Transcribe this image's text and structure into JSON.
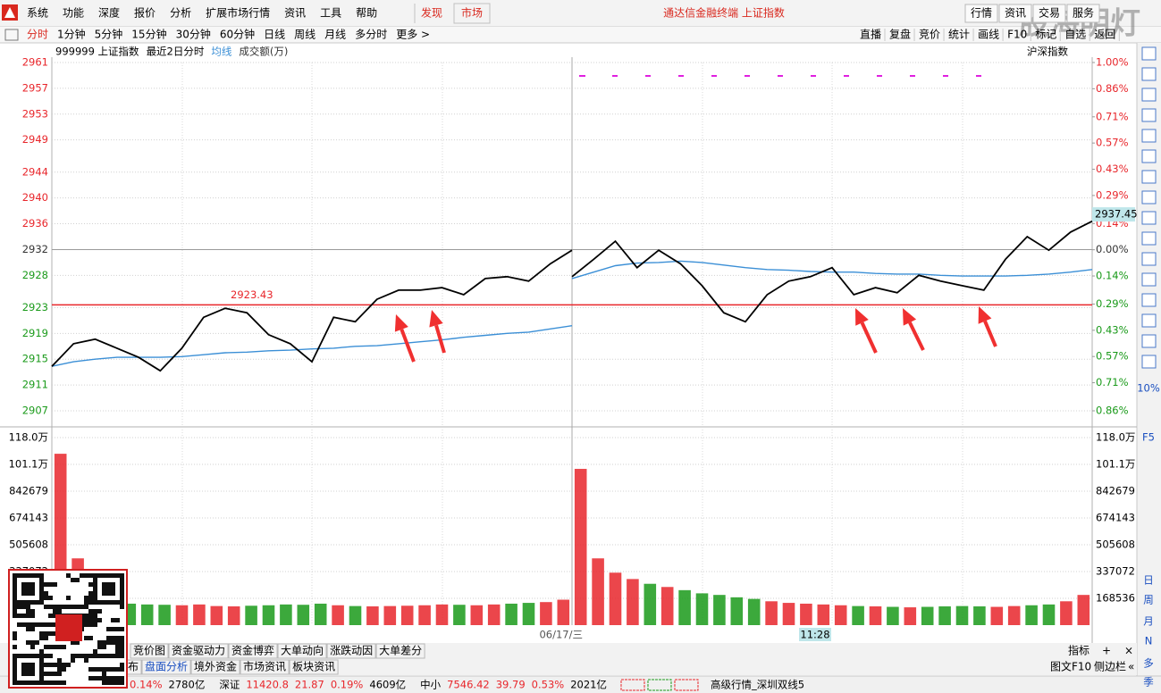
{
  "menu": {
    "items": [
      "系统",
      "功能",
      "深度",
      "报价",
      "分析",
      "扩展市场行情",
      "资讯",
      "工具",
      "帮助"
    ],
    "discover": "发现",
    "market": "市场",
    "title": "通达信金融终端  上证指数",
    "right": [
      "行情",
      "资讯",
      "交易",
      "服务"
    ],
    "watermark": "股海明灯"
  },
  "toolbar": {
    "periods": [
      "分时",
      "1分钟",
      "5分钟",
      "15分钟",
      "30分钟",
      "60分钟",
      "日线",
      "周线",
      "月线",
      "多分时",
      "更多 >"
    ],
    "right": [
      "直播",
      "复盘",
      "竞价",
      "统计",
      "画线",
      "F10",
      "标记",
      "自选",
      "返回"
    ]
  },
  "chart_data": [
    {
      "type": "line",
      "subtitle": "最近2日分时",
      "corner_label": "沪深指数",
      "series": [
        {
          "name": "999999 上证指数",
          "color": "#000000",
          "values": [
            2913.9,
            2917.4,
            2918.1,
            2916.7,
            2915.3,
            2913.2,
            2916.7,
            2921.5,
            2922.9,
            2922.2,
            2918.8,
            2917.4,
            2914.6,
            2921.5,
            2920.8,
            2924.3,
            2925.7,
            2925.7,
            2926.1,
            2925.0,
            2927.5,
            2927.8,
            2927.1,
            2929.8,
            2931.9,
            null,
            2927.8,
            2930.5,
            2933.3,
            2929.2,
            2931.9,
            2929.8,
            2926.4,
            2922.2,
            2920.8,
            2925.0,
            2927.1,
            2927.8,
            2929.2,
            2925.0,
            2926.1,
            2925.3,
            2928.0,
            2927.1,
            2926.4,
            2925.7,
            2930.5,
            2934.0,
            2931.9,
            2934.7,
            2936.4
          ]
        },
        {
          "name": "均线",
          "color": "#3b8fd6",
          "values": [
            2913.9,
            2914.6,
            2915.0,
            2915.3,
            2915.3,
            2915.3,
            2915.4,
            2915.7,
            2916.0,
            2916.1,
            2916.3,
            2916.4,
            2916.6,
            2916.7,
            2917.0,
            2917.1,
            2917.4,
            2917.7,
            2918.0,
            2918.4,
            2918.7,
            2919.0,
            2919.2,
            2919.7,
            2920.2,
            null,
            2927.5,
            2928.5,
            2929.5,
            2929.9,
            2930.0,
            2930.2,
            2930.0,
            2929.6,
            2929.2,
            2928.9,
            2928.8,
            2928.6,
            2928.5,
            2928.5,
            2928.3,
            2928.2,
            2928.2,
            2928.0,
            2927.9,
            2927.9,
            2927.9,
            2928.0,
            2928.2,
            2928.5,
            2928.9
          ]
        }
      ],
      "ylim": [
        2907,
        2961
      ],
      "yticks": [
        2961,
        2957,
        2953,
        2949,
        2944,
        2940,
        2936,
        2932,
        2928,
        2923,
        2919,
        2915,
        2911,
        2907
      ],
      "y2lim": [
        -0.86,
        1.0
      ],
      "y2ticks": [
        {
          "value": 1.0,
          "label": "1.00%"
        },
        {
          "value": 0.86,
          "label": "0.86%"
        },
        {
          "value": 0.71,
          "label": "0.71%"
        },
        {
          "value": 0.57,
          "label": "0.57%"
        },
        {
          "value": 0.43,
          "label": "0.43%"
        },
        {
          "value": 0.29,
          "label": "0.29%"
        },
        {
          "value": 0.14,
          "label": "0.14%"
        },
        {
          "value": 0,
          "label": "0.00%"
        },
        {
          "value": -0.14,
          "label": "0.14%"
        },
        {
          "value": -0.29,
          "label": "0.29%"
        },
        {
          "value": -0.43,
          "label": "0.43%"
        },
        {
          "value": -0.57,
          "label": "0.57%"
        },
        {
          "value": -0.71,
          "label": "0.71%"
        },
        {
          "value": -0.86,
          "label": "0.86%"
        }
      ],
      "reference_line": 2923.43,
      "reference_color": "#e8262b",
      "last_value": 2937.45,
      "up_color": "#e8262b",
      "down_color": "#1a9a1a"
    },
    {
      "type": "bar",
      "title": "成交额(万)",
      "x_label": "06/17/三",
      "cursor_label": "11:28",
      "values": [
        1078000,
        420000,
        150000,
        140000,
        135000,
        130000,
        128000,
        125000,
        130000,
        120000,
        118000,
        122000,
        125000,
        130000,
        128000,
        135000,
        125000,
        120000,
        118000,
        120000,
        122000,
        125000,
        130000,
        128000,
        125000,
        130000,
        135000,
        140000,
        145000,
        160000,
        983000,
        420000,
        330000,
        290000,
        260000,
        240000,
        220000,
        200000,
        190000,
        175000,
        165000,
        150000,
        140000,
        135000,
        130000,
        125000,
        120000,
        118000,
        115000,
        112000,
        115000,
        118000,
        120000,
        118000,
        115000,
        120000,
        125000,
        130000,
        150000,
        190000
      ],
      "ylim": [
        0,
        1179752
      ],
      "yticks": [
        {
          "value": 1179752,
          "label": "118.0万"
        },
        {
          "value": 1011216,
          "label": "101.1万"
        },
        842679,
        674143,
        505608,
        337072,
        168536
      ],
      "up_color": "#e8262b",
      "down_color": "#1a9a1a"
    }
  ],
  "bottom_tabs": {
    "row1": [
      "竞价图",
      "资金驱动力",
      "资金博弈",
      "大单动向",
      "涨跌动因",
      "大单差分"
    ],
    "row1_right": [
      "指标",
      "+",
      "×"
    ],
    "row2": [
      "布",
      "盘面分析",
      "境外资金",
      "市场资讯",
      "板块资讯"
    ],
    "row2_right": [
      "图文F10",
      "侧边栏",
      "«"
    ]
  },
  "status_bar": [
    "0.14%",
    "2780亿",
    "深证",
    "11420.8",
    "21.87",
    "0.19%",
    "4609亿",
    "中小",
    "7546.42",
    "39.79",
    "0.53%",
    "2021亿",
    "高级行情_深圳双线5"
  ],
  "side_tools": [
    "10%",
    "F5",
    "日",
    "周",
    "月",
    "N",
    "多",
    "季"
  ]
}
